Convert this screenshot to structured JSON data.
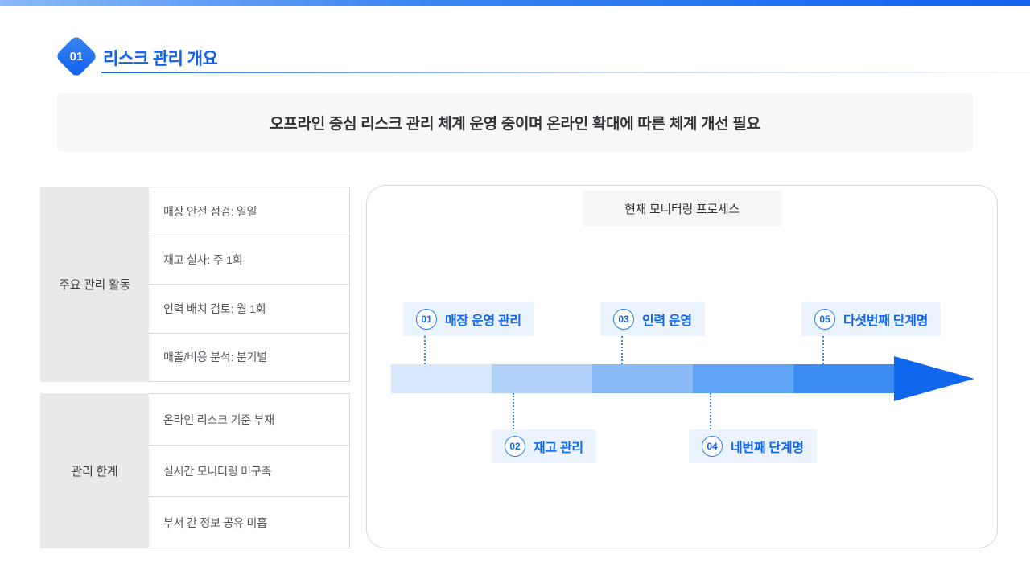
{
  "colors": {
    "accent": "#1161ee",
    "arrow_segments": [
      "#d7e8fd",
      "#b0d2fa",
      "#8abbf7",
      "#61a3f4",
      "#3c8df1"
    ],
    "arrowhead": "#1166ee"
  },
  "header": {
    "badge": "01",
    "title": "리스크 관리 개요"
  },
  "banner": {
    "text": "오프라인 중심 리스크 관리 체계 운영 중이며 온라인 확대에 따른 체계 개선 필요"
  },
  "tables": [
    {
      "header": "주요 관리 활동",
      "rows": [
        "매장 안전 점검: 일일",
        "재고 실사: 주 1회",
        "인력 배치 검토: 월 1회",
        "매출/비용 분석: 분기별"
      ]
    },
    {
      "header": "관리 한계",
      "rows": [
        "온라인 리스크 기준 부재",
        "실시간 모니터링 미구축",
        "부서 간 정보 공유 미흡"
      ]
    }
  ],
  "process": {
    "title": "현재 모니터링 프로세스",
    "steps": [
      {
        "num": "01",
        "label": "매장 운영 관리",
        "position": "top"
      },
      {
        "num": "02",
        "label": "재고 관리",
        "position": "bottom"
      },
      {
        "num": "03",
        "label": "인력 운영",
        "position": "top"
      },
      {
        "num": "04",
        "label": "네번째 단계명",
        "position": "bottom"
      },
      {
        "num": "05",
        "label": "다섯번째 단계명",
        "position": "top"
      }
    ]
  }
}
